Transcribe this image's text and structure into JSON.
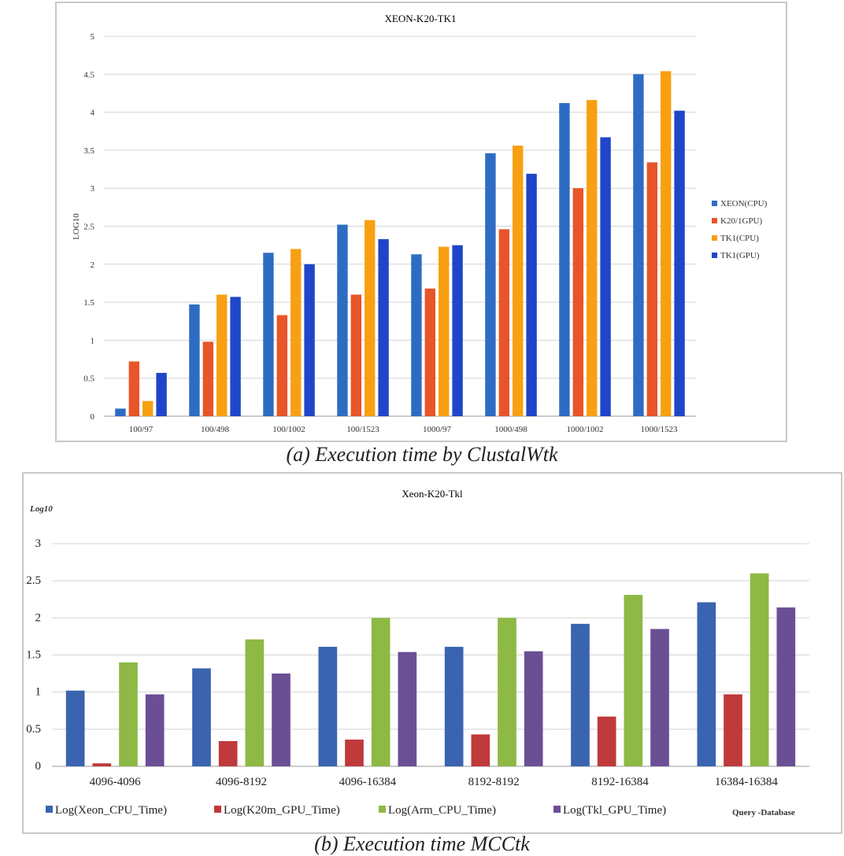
{
  "figure": {
    "caption_a": "(a) Execution time by ClustalWtk",
    "caption_b": "(b) Execution time MCCtk"
  },
  "chart_data": [
    {
      "type": "bar",
      "title": "XEON-K20-TK1",
      "xlabel": "",
      "ylabel": "LOG10",
      "ylim": [
        0,
        5
      ],
      "yticks": [
        "0",
        "0.5",
        "1",
        "1.5",
        "2",
        "2.5",
        "3",
        "3.5",
        "4",
        "4.5",
        "5"
      ],
      "grid": true,
      "legend_position": "right",
      "categories": [
        "100/97",
        "100/498",
        "100/1002",
        "100/1523",
        "1000/97",
        "1000/498",
        "1000/1002",
        "1000/1523"
      ],
      "series": [
        {
          "name": "XEON(CPU)",
          "color": "#2e6cc4",
          "values": [
            0.1,
            1.47,
            2.15,
            2.52,
            2.13,
            3.46,
            4.12,
            4.5
          ]
        },
        {
          "name": "K20/1GPU)",
          "color": "#e8552a",
          "values": [
            0.72,
            0.98,
            1.33,
            1.6,
            1.68,
            2.46,
            3.0,
            3.34
          ]
        },
        {
          "name": "TK1(CPU)",
          "color": "#f8a012",
          "values": [
            0.2,
            1.6,
            2.2,
            2.58,
            2.23,
            3.56,
            4.16,
            4.54
          ]
        },
        {
          "name": "TK1(GPU)",
          "color": "#1f46c8",
          "values": [
            0.57,
            1.57,
            2.0,
            2.33,
            2.25,
            3.19,
            3.67,
            4.02
          ]
        }
      ]
    },
    {
      "type": "bar",
      "title": "Xeon-K20-Tkl",
      "ylabel": "Log10",
      "xlabel": "Query -Database",
      "ylim": [
        0,
        3
      ],
      "yticks": [
        "0",
        "0.5",
        "1",
        "1.5",
        "2",
        "2.5",
        "3"
      ],
      "grid": true,
      "legend_position": "bottom",
      "categories": [
        "4096-4096",
        "4096-8192",
        "4096-16384",
        "8192-8192",
        "8192-16384",
        "16384-16384"
      ],
      "series": [
        {
          "name": "Log(Xeon_CPU_Time)",
          "color": "#3a64b0",
          "values": [
            1.02,
            1.32,
            1.61,
            1.61,
            1.92,
            2.21
          ]
        },
        {
          "name": "Log(K20m_GPU_Time)",
          "color": "#c0393b",
          "values": [
            0.04,
            0.34,
            0.36,
            0.43,
            0.67,
            0.97
          ]
        },
        {
          "name": "Log(Arm_CPU_Time)",
          "color": "#8db944",
          "values": [
            1.4,
            1.71,
            2.0,
            2.0,
            2.31,
            2.6
          ]
        },
        {
          "name": "Log(Tkl_GPU_Time)",
          "color": "#6b4f95",
          "values": [
            0.97,
            1.25,
            1.54,
            1.55,
            1.85,
            2.14
          ]
        }
      ]
    }
  ]
}
